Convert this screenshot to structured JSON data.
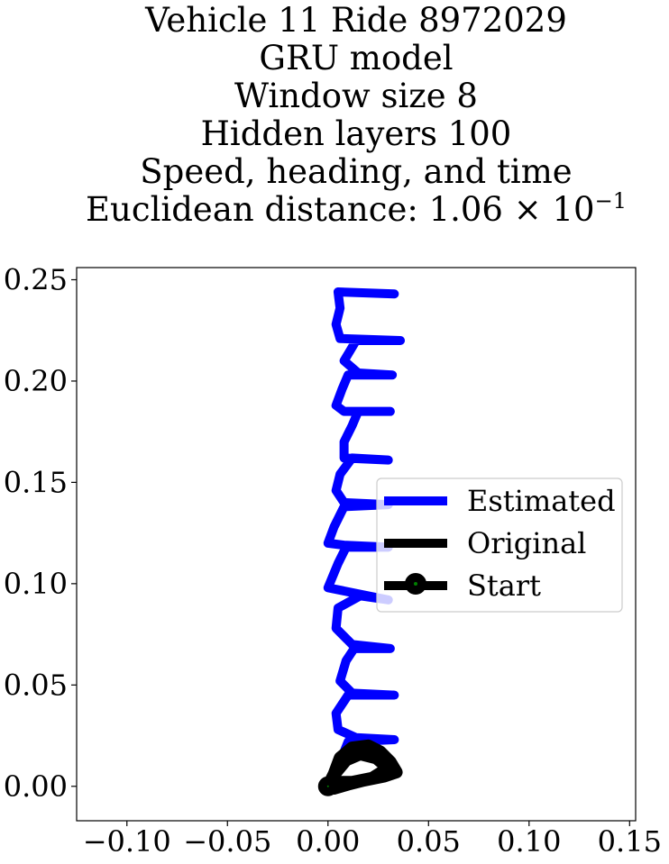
{
  "chart_data": {
    "type": "line",
    "title_lines": [
      "Vehicle 11 Ride 8972029",
      "GRU model",
      "Window size 8",
      "Hidden layers 100",
      "Speed, heading, and time"
    ],
    "title_metric_prefix": "Euclidean distance: 1.06 × 10",
    "title_metric_exponent": "−1",
    "xlim": [
      -0.125,
      0.153
    ],
    "ylim": [
      -0.017,
      0.256
    ],
    "x_ticks": [
      -0.1,
      -0.05,
      0.0,
      0.05,
      0.1,
      0.15
    ],
    "x_tick_labels": [
      "−0.10",
      "−0.05",
      "0.00",
      "0.05",
      "0.10",
      "0.15"
    ],
    "y_ticks": [
      0.0,
      0.05,
      0.1,
      0.15,
      0.2,
      0.25
    ],
    "y_tick_labels": [
      "0.00",
      "0.05",
      "0.10",
      "0.15",
      "0.20",
      "0.25"
    ],
    "legend_position": "center right",
    "series": [
      {
        "name": "Estimated",
        "color": "#0000ff",
        "points": [
          [
            0.0,
            0.0
          ],
          [
            0.006,
            0.012
          ],
          [
            0.01,
            0.022
          ],
          [
            0.033,
            0.023
          ],
          [
            0.014,
            0.024
          ],
          [
            0.005,
            0.028
          ],
          [
            0.004,
            0.036
          ],
          [
            0.01,
            0.045
          ],
          [
            0.033,
            0.045
          ],
          [
            0.012,
            0.046
          ],
          [
            0.006,
            0.052
          ],
          [
            0.009,
            0.062
          ],
          [
            0.013,
            0.068
          ],
          [
            0.031,
            0.068
          ],
          [
            0.012,
            0.07
          ],
          [
            0.004,
            0.078
          ],
          [
            0.005,
            0.088
          ],
          [
            0.016,
            0.094
          ],
          [
            0.03,
            0.092
          ],
          [
            0.01,
            0.096
          ],
          [
            0.0,
            0.098
          ],
          [
            0.005,
            0.11
          ],
          [
            0.009,
            0.118
          ],
          [
            0.03,
            0.118
          ],
          [
            0.008,
            0.119
          ],
          [
            0.0,
            0.12
          ],
          [
            0.003,
            0.128
          ],
          [
            0.008,
            0.138
          ],
          [
            0.03,
            0.139
          ],
          [
            0.008,
            0.14
          ],
          [
            0.004,
            0.146
          ],
          [
            0.006,
            0.154
          ],
          [
            0.012,
            0.162
          ],
          [
            0.03,
            0.161
          ],
          [
            0.008,
            0.162
          ],
          [
            0.008,
            0.17
          ],
          [
            0.012,
            0.178
          ],
          [
            0.015,
            0.185
          ],
          [
            0.031,
            0.185
          ],
          [
            0.008,
            0.185
          ],
          [
            0.004,
            0.188
          ],
          [
            0.007,
            0.196
          ],
          [
            0.01,
            0.203
          ],
          [
            0.032,
            0.203
          ],
          [
            0.015,
            0.204
          ],
          [
            0.008,
            0.21
          ],
          [
            0.014,
            0.22
          ],
          [
            0.036,
            0.22
          ],
          [
            0.006,
            0.221
          ],
          [
            0.004,
            0.228
          ],
          [
            0.006,
            0.236
          ],
          [
            0.005,
            0.244
          ],
          [
            0.033,
            0.243
          ]
        ]
      },
      {
        "name": "Original",
        "color": "#000000",
        "points": [
          [
            0.0,
            0.0
          ],
          [
            0.003,
            0.006
          ],
          [
            0.006,
            0.014
          ],
          [
            0.012,
            0.019
          ],
          [
            0.02,
            0.02
          ],
          [
            0.026,
            0.017
          ],
          [
            0.031,
            0.012
          ],
          [
            0.034,
            0.007
          ],
          [
            0.028,
            0.005
          ],
          [
            0.018,
            0.003
          ],
          [
            0.01,
            0.001
          ],
          [
            0.003,
            -0.001
          ],
          [
            0.0,
            0.0
          ],
          [
            0.004,
            0.007
          ],
          [
            0.009,
            0.013
          ],
          [
            0.016,
            0.016
          ],
          [
            0.024,
            0.014
          ],
          [
            0.03,
            0.009
          ],
          [
            0.022,
            0.004
          ],
          [
            0.012,
            0.002
          ],
          [
            0.005,
            0.002
          ]
        ]
      },
      {
        "name": "Start",
        "color": "#000000",
        "marker_face": "#008000",
        "points": [
          [
            0.0,
            0.0
          ]
        ]
      }
    ]
  }
}
